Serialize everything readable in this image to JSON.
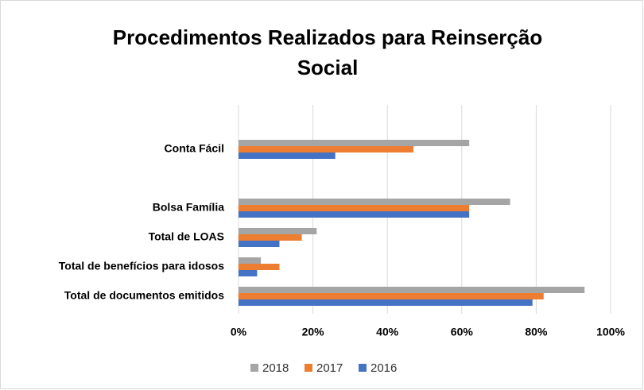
{
  "chart_data": {
    "type": "hbar",
    "title": "Procedimentos Realizados para Reinserção Social",
    "categories": [
      "Conta Fácil",
      null,
      "Bolsa Família",
      "Total de LOAS",
      "Total de benefícios para idosos",
      "Total de documentos emitidos"
    ],
    "series": [
      {
        "name": "2018",
        "color": "#a5a5a5",
        "values": [
          62,
          null,
          73,
          21,
          6,
          93
        ]
      },
      {
        "name": "2017",
        "color": "#ed7d31",
        "values": [
          47,
          null,
          62,
          17,
          11,
          82
        ]
      },
      {
        "name": "2016",
        "color": "#4472c4",
        "values": [
          26,
          null,
          62,
          11,
          5,
          79
        ]
      }
    ],
    "xlim": [
      0,
      100
    ],
    "xticks": [
      {
        "value": 0,
        "label": "0%"
      },
      {
        "value": 20,
        "label": "20%"
      },
      {
        "value": 40,
        "label": "40%"
      },
      {
        "value": 60,
        "label": "60%"
      },
      {
        "value": 80,
        "label": "80%"
      },
      {
        "value": 100,
        "label": "100%"
      }
    ],
    "grid": true,
    "legend": "bottom"
  }
}
